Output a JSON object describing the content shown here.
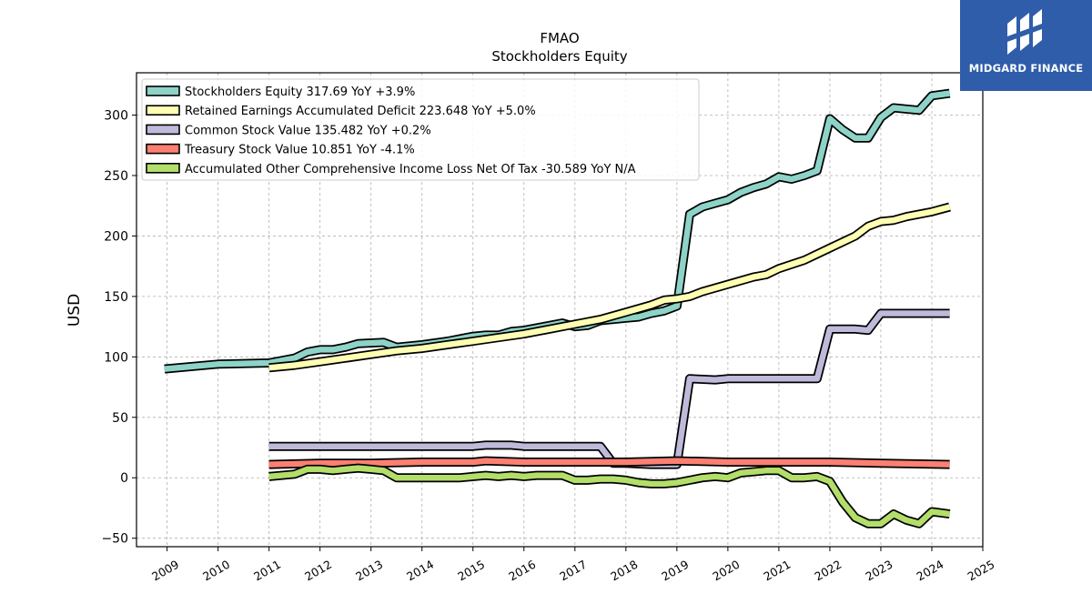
{
  "chart_data": {
    "type": "line",
    "title": "FMAO",
    "subtitle": "Stockholders  Equity",
    "ylabel": "USD",
    "xlabel": "",
    "xlim": [
      2008.4,
      2025.0
    ],
    "ylim": [
      -57,
      335
    ],
    "yticks": [
      -50,
      0,
      50,
      100,
      150,
      200,
      250,
      300
    ],
    "xticks": [
      2009,
      2010,
      2011,
      2012,
      2013,
      2014,
      2015,
      2016,
      2017,
      2018,
      2019,
      2020,
      2021,
      2022,
      2023,
      2024,
      2025
    ],
    "grid": true,
    "legend_position": "top-left",
    "series": [
      {
        "name": "Stockholders Equity",
        "legend_label": "Stockholders Equity  317.69 YoY +3.9%",
        "color": "#8dd3c7",
        "points": [
          [
            2008.95,
            90
          ],
          [
            2010.0,
            94
          ],
          [
            2011.0,
            95
          ],
          [
            2011.5,
            99
          ],
          [
            2011.75,
            104
          ],
          [
            2012.0,
            106
          ],
          [
            2012.25,
            106
          ],
          [
            2012.5,
            108
          ],
          [
            2012.75,
            111
          ],
          [
            2013.25,
            112
          ],
          [
            2013.5,
            108
          ],
          [
            2014.0,
            110
          ],
          [
            2014.5,
            113
          ],
          [
            2015.0,
            117
          ],
          [
            2015.25,
            118
          ],
          [
            2015.5,
            118
          ],
          [
            2015.75,
            121
          ],
          [
            2016.0,
            122
          ],
          [
            2016.5,
            126
          ],
          [
            2016.75,
            128
          ],
          [
            2017.0,
            125
          ],
          [
            2017.25,
            126
          ],
          [
            2017.5,
            130
          ],
          [
            2017.75,
            131
          ],
          [
            2018.0,
            132
          ],
          [
            2018.25,
            133
          ],
          [
            2018.5,
            136
          ],
          [
            2018.75,
            138
          ],
          [
            2019.0,
            142
          ],
          [
            2019.25,
            218
          ],
          [
            2019.5,
            224
          ],
          [
            2019.75,
            227
          ],
          [
            2020.0,
            230
          ],
          [
            2020.25,
            236
          ],
          [
            2020.5,
            240
          ],
          [
            2020.75,
            243
          ],
          [
            2021.0,
            249
          ],
          [
            2021.25,
            247
          ],
          [
            2021.5,
            250
          ],
          [
            2021.75,
            254
          ],
          [
            2022.0,
            297
          ],
          [
            2022.25,
            288
          ],
          [
            2022.5,
            281
          ],
          [
            2022.75,
            281
          ],
          [
            2023.0,
            298
          ],
          [
            2023.25,
            306
          ],
          [
            2023.5,
            305
          ],
          [
            2023.75,
            304
          ],
          [
            2024.0,
            316
          ],
          [
            2024.35,
            318
          ]
        ]
      },
      {
        "name": "Retained Earnings Accumulated Deficit",
        "legend_label": "Retained Earnings Accumulated Deficit  223.648 YoY +5.0%",
        "color": "#ffffb3",
        "points": [
          [
            2011.0,
            91
          ],
          [
            2011.5,
            93
          ],
          [
            2012.0,
            96
          ],
          [
            2012.5,
            99
          ],
          [
            2013.0,
            102
          ],
          [
            2013.5,
            105
          ],
          [
            2014.0,
            107
          ],
          [
            2014.5,
            110
          ],
          [
            2015.0,
            113
          ],
          [
            2015.5,
            116
          ],
          [
            2016.0,
            119
          ],
          [
            2016.5,
            123
          ],
          [
            2017.0,
            127
          ],
          [
            2017.5,
            131
          ],
          [
            2018.0,
            137
          ],
          [
            2018.5,
            143
          ],
          [
            2018.75,
            147
          ],
          [
            2019.0,
            148
          ],
          [
            2019.25,
            150
          ],
          [
            2019.5,
            154
          ],
          [
            2020.0,
            160
          ],
          [
            2020.5,
            166
          ],
          [
            2020.75,
            168
          ],
          [
            2021.0,
            173
          ],
          [
            2021.5,
            180
          ],
          [
            2022.0,
            190
          ],
          [
            2022.5,
            200
          ],
          [
            2022.75,
            208
          ],
          [
            2023.0,
            212
          ],
          [
            2023.25,
            213
          ],
          [
            2023.5,
            216
          ],
          [
            2024.0,
            220
          ],
          [
            2024.35,
            224
          ]
        ]
      },
      {
        "name": "Common Stock Value",
        "legend_label": "Common Stock Value  135.482 YoY +0.2%",
        "color": "#bebada",
        "points": [
          [
            2011.0,
            26
          ],
          [
            2012.0,
            26
          ],
          [
            2013.0,
            26
          ],
          [
            2014.0,
            26
          ],
          [
            2014.75,
            26
          ],
          [
            2015.0,
            26
          ],
          [
            2015.25,
            27
          ],
          [
            2015.75,
            27
          ],
          [
            2016.0,
            26
          ],
          [
            2016.5,
            26
          ],
          [
            2016.75,
            26
          ],
          [
            2017.5,
            26
          ],
          [
            2017.75,
            12
          ],
          [
            2018.0,
            12
          ],
          [
            2018.5,
            11
          ],
          [
            2018.75,
            11
          ],
          [
            2019.0,
            11
          ],
          [
            2019.25,
            82
          ],
          [
            2019.75,
            81
          ],
          [
            2020.0,
            82
          ],
          [
            2020.5,
            82
          ],
          [
            2020.75,
            82
          ],
          [
            2021.0,
            82
          ],
          [
            2021.5,
            82
          ],
          [
            2021.75,
            82
          ],
          [
            2022.0,
            123
          ],
          [
            2022.5,
            123
          ],
          [
            2022.75,
            122
          ],
          [
            2023.0,
            136
          ],
          [
            2023.5,
            136
          ],
          [
            2023.75,
            136
          ],
          [
            2024.35,
            136
          ]
        ]
      },
      {
        "name": "Treasury Stock Value",
        "legend_label": "Treasury Stock Value  10.851 YoY -4.1%",
        "color": "#fb8072",
        "points": [
          [
            2011.0,
            11
          ],
          [
            2012.0,
            12
          ],
          [
            2013.0,
            12
          ],
          [
            2014.0,
            13
          ],
          [
            2015.0,
            13
          ],
          [
            2015.25,
            14
          ],
          [
            2016.0,
            13
          ],
          [
            2017.0,
            13
          ],
          [
            2018.0,
            13
          ],
          [
            2019.0,
            14
          ],
          [
            2020.0,
            13
          ],
          [
            2021.0,
            13
          ],
          [
            2022.0,
            13
          ],
          [
            2023.0,
            12
          ],
          [
            2024.35,
            11
          ]
        ]
      },
      {
        "name": "Accumulated Other Comprehensive Income Loss Net Of Tax",
        "legend_label": "Accumulated Other Comprehensive Income Loss Net Of Tax  -30.589 YoY N/A",
        "color": "#b3de69",
        "points": [
          [
            2011.0,
            1
          ],
          [
            2011.5,
            3
          ],
          [
            2011.75,
            7
          ],
          [
            2012.0,
            7
          ],
          [
            2012.25,
            6
          ],
          [
            2012.5,
            7
          ],
          [
            2012.75,
            8
          ],
          [
            2013.0,
            7
          ],
          [
            2013.25,
            6
          ],
          [
            2013.5,
            0
          ],
          [
            2014.0,
            0
          ],
          [
            2014.25,
            0
          ],
          [
            2014.5,
            0
          ],
          [
            2014.75,
            0
          ],
          [
            2015.0,
            1
          ],
          [
            2015.25,
            2
          ],
          [
            2015.5,
            1
          ],
          [
            2015.75,
            2
          ],
          [
            2016.0,
            1
          ],
          [
            2016.25,
            2
          ],
          [
            2016.75,
            2
          ],
          [
            2017.0,
            -2
          ],
          [
            2017.25,
            -2
          ],
          [
            2017.5,
            -1
          ],
          [
            2017.75,
            -1
          ],
          [
            2018.0,
            -2
          ],
          [
            2018.25,
            -4
          ],
          [
            2018.5,
            -5
          ],
          [
            2018.75,
            -5
          ],
          [
            2019.0,
            -4
          ],
          [
            2019.25,
            -2
          ],
          [
            2019.5,
            0
          ],
          [
            2019.75,
            1
          ],
          [
            2020.0,
            0
          ],
          [
            2020.25,
            4
          ],
          [
            2020.5,
            5
          ],
          [
            2020.75,
            6
          ],
          [
            2021.0,
            6
          ],
          [
            2021.25,
            0
          ],
          [
            2021.5,
            0
          ],
          [
            2021.75,
            1
          ],
          [
            2022.0,
            -3
          ],
          [
            2022.25,
            -20
          ],
          [
            2022.5,
            -33
          ],
          [
            2022.75,
            -38
          ],
          [
            2023.0,
            -38
          ],
          [
            2023.25,
            -30
          ],
          [
            2023.5,
            -35
          ],
          [
            2023.75,
            -38
          ],
          [
            2024.0,
            -28
          ],
          [
            2024.35,
            -30
          ]
        ]
      }
    ]
  },
  "logo": {
    "text": "MIDGARD FINANCE",
    "color": "#2f5daa"
  }
}
